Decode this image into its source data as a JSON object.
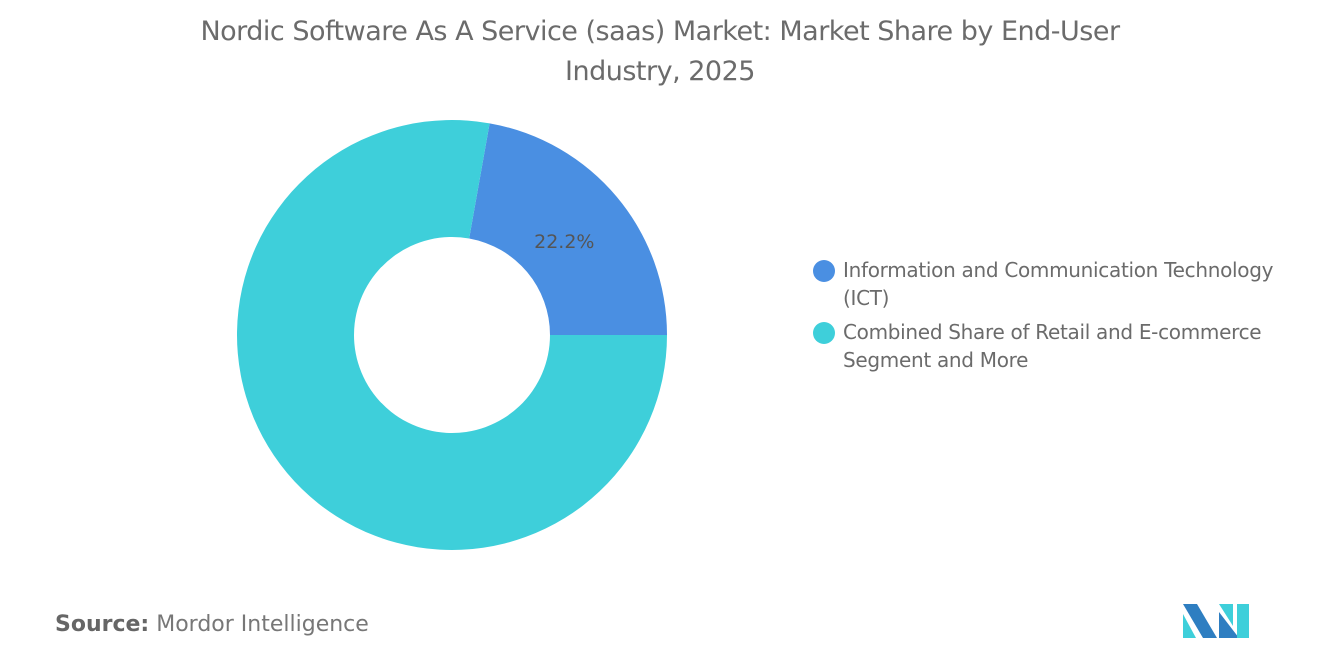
{
  "chart_data": {
    "type": "pie",
    "subtype": "donut",
    "title": "Nordic Software As A Service (saas) Market: Market Share by End-User Industry, 2025",
    "slices": [
      {
        "name": "Information and Communication Technology (ICT)",
        "value": 22.2,
        "label": "22.2%",
        "color": "#4A8FE2"
      },
      {
        "name": "Combined Share of Retail and E-commerce Segment and More",
        "value": 77.8,
        "label": "",
        "color": "#3ECFDA"
      }
    ],
    "legend_position": "right"
  },
  "source": {
    "label": "Source:",
    "value": "Mordor Intelligence"
  },
  "logo": {
    "text": "Mordor Intelligence",
    "colors": [
      "#2E7EC1",
      "#3ECFDA"
    ]
  }
}
